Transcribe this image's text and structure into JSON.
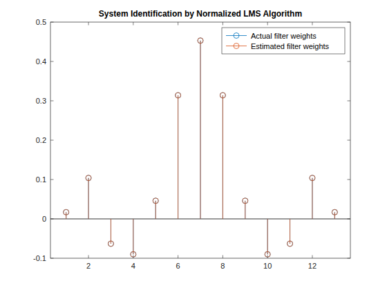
{
  "chart_data": {
    "type": "stem",
    "title": "System Identification by Normalized LMS Algorithm",
    "x": [
      1,
      2,
      3,
      4,
      5,
      6,
      7,
      8,
      9,
      10,
      11,
      12,
      13
    ],
    "series": [
      {
        "name": "Actual filter weights",
        "color": "#0072bd",
        "marker": "circle",
        "values": [
          0.017,
          0.104,
          -0.063,
          -0.09,
          0.046,
          0.314,
          0.453,
          0.314,
          0.046,
          -0.09,
          -0.063,
          0.104,
          0.017
        ]
      },
      {
        "name": "Estimated filter weights",
        "color": "#d95319",
        "marker": "circle",
        "values": [
          0.017,
          0.104,
          -0.063,
          -0.09,
          0.046,
          0.314,
          0.453,
          0.314,
          0.046,
          -0.09,
          -0.063,
          0.104,
          0.017
        ]
      }
    ],
    "xlim": [
      0.3,
      13.7
    ],
    "xticks": [
      2,
      4,
      6,
      8,
      10,
      12
    ],
    "ylim": [
      -0.1,
      0.5
    ],
    "yticks": [
      -0.1,
      0,
      0.1,
      0.2,
      0.3,
      0.4,
      0.5
    ],
    "grid": false,
    "legend": "northeast"
  }
}
